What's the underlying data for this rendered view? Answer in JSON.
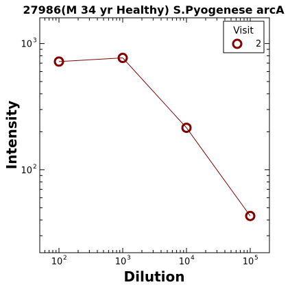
{
  "chart_data": {
    "type": "line",
    "title": "27986(M 34 yr Healthy) S.Pyogenese arcA",
    "xlabel": "Dilution",
    "ylabel": "Intensity",
    "xscale": "log",
    "yscale": "log",
    "xlim": [
      50,
      200000
    ],
    "ylim": [
      22,
      1600
    ],
    "x_ticks": [
      {
        "value": 100,
        "base": "10",
        "exp": "2"
      },
      {
        "value": 1000,
        "base": "10",
        "exp": "3"
      },
      {
        "value": 10000,
        "base": "10",
        "exp": "4"
      },
      {
        "value": 100000,
        "base": "10",
        "exp": "5"
      }
    ],
    "y_ticks": [
      {
        "value": 100,
        "base": "10",
        "exp": "2"
      },
      {
        "value": 1000,
        "base": "10",
        "exp": "3"
      }
    ],
    "grid": false,
    "legend": {
      "title": "Visit",
      "position": "top-right"
    },
    "series": [
      {
        "name": "2",
        "color": "#800000",
        "marker": "open-circle",
        "x": [
          100,
          1000,
          10000,
          100000
        ],
        "y": [
          720,
          770,
          215,
          43
        ]
      }
    ]
  }
}
